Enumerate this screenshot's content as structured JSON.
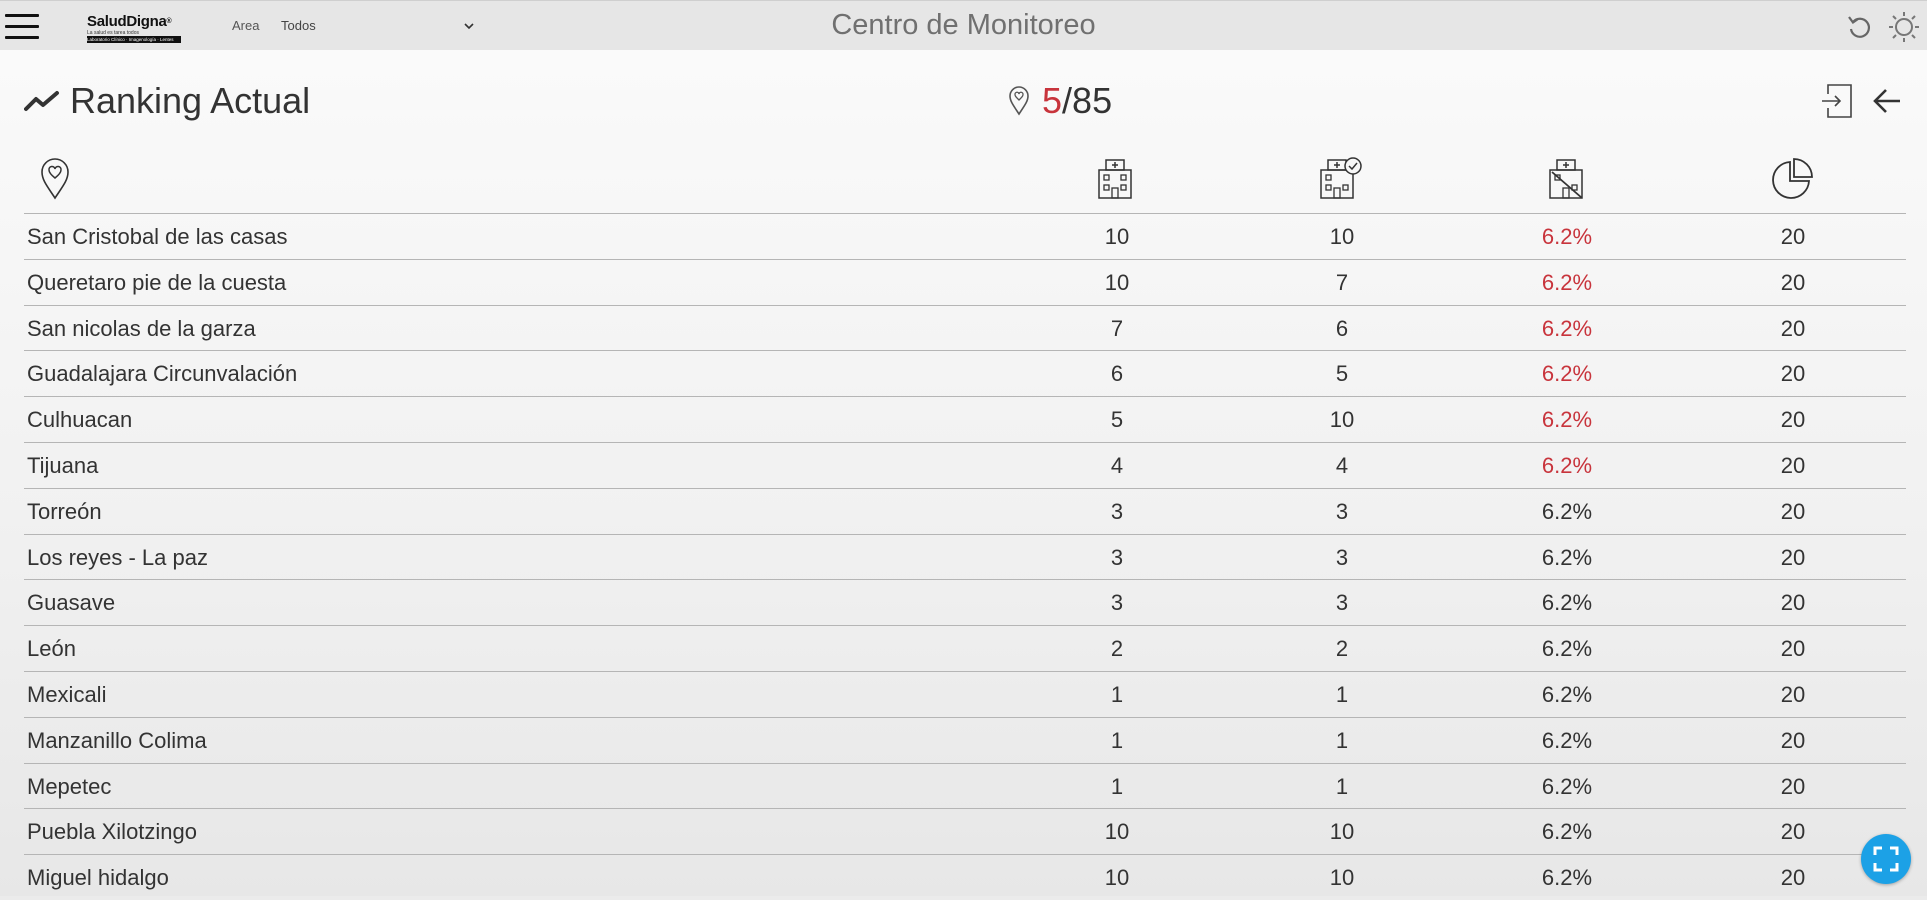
{
  "header": {
    "app_title": "Centro de Monitoreo",
    "brand": {
      "name": "SaludDigna",
      "registered": "®",
      "tagline": "La salud es tarea todos",
      "bar_text": "Laboratorio Clínico · Imagenología · Lentes"
    },
    "filter": {
      "label": "Area",
      "value": "Todos"
    }
  },
  "ranking": {
    "title": "Ranking Actual",
    "current": "5",
    "separator": "/",
    "total": "85"
  },
  "columns": [
    {
      "icon": "location-heart-icon"
    },
    {
      "icon": "hospital-icon"
    },
    {
      "icon": "hospital-check-icon"
    },
    {
      "icon": "hospital-closed-icon"
    },
    {
      "icon": "pie-chart-icon"
    }
  ],
  "rows": [
    {
      "name": "San Cristobal de las casas",
      "c1": "10",
      "c2": "10",
      "c3": "6.2%",
      "c4": "20",
      "alert": true
    },
    {
      "name": "Queretaro pie de la cuesta",
      "c1": "10",
      "c2": "7",
      "c3": "6.2%",
      "c4": "20",
      "alert": true
    },
    {
      "name": "San nicolas de la garza",
      "c1": "7",
      "c2": "6",
      "c3": "6.2%",
      "c4": "20",
      "alert": true
    },
    {
      "name": "Guadalajara Circunvalación",
      "c1": "6",
      "c2": "5",
      "c3": "6.2%",
      "c4": "20",
      "alert": true
    },
    {
      "name": "Culhuacan",
      "c1": "5",
      "c2": "10",
      "c3": "6.2%",
      "c4": "20",
      "alert": true
    },
    {
      "name": "Tijuana",
      "c1": "4",
      "c2": "4",
      "c3": "6.2%",
      "c4": "20",
      "alert": true
    },
    {
      "name": "Torreón",
      "c1": "3",
      "c2": "3",
      "c3": "6.2%",
      "c4": "20",
      "alert": false
    },
    {
      "name": "Los reyes - La paz",
      "c1": "3",
      "c2": "3",
      "c3": "6.2%",
      "c4": "20",
      "alert": false
    },
    {
      "name": "Guasave",
      "c1": "3",
      "c2": "3",
      "c3": "6.2%",
      "c4": "20",
      "alert": false
    },
    {
      "name": "León",
      "c1": "2",
      "c2": "2",
      "c3": "6.2%",
      "c4": "20",
      "alert": false
    },
    {
      "name": "Mexicali",
      "c1": "1",
      "c2": "1",
      "c3": "6.2%",
      "c4": "20",
      "alert": false
    },
    {
      "name": "Manzanillo Colima",
      "c1": "1",
      "c2": "1",
      "c3": "6.2%",
      "c4": "20",
      "alert": false
    },
    {
      "name": "Mepetec",
      "c1": "1",
      "c2": "1",
      "c3": "6.2%",
      "c4": "20",
      "alert": false
    },
    {
      "name": "Puebla Xilotzingo",
      "c1": "10",
      "c2": "10",
      "c3": "6.2%",
      "c4": "20",
      "alert": false
    },
    {
      "name": "Miguel hidalgo",
      "c1": "10",
      "c2": "10",
      "c3": "6.2%",
      "c4": "20",
      "alert": false
    }
  ],
  "colors": {
    "alert": "#c8343c",
    "fab": "#1ca1e6",
    "title_gray": "#707070"
  },
  "icons": {
    "menu": "hamburger-icon",
    "refresh": "refresh-icon",
    "theme": "sun-icon",
    "trend": "trend-line-icon",
    "location": "location-pin-icon",
    "exit": "exit-icon",
    "back": "arrow-left-icon",
    "fullscreen": "fullscreen-icon",
    "dropdown": "chevron-down-icon"
  }
}
